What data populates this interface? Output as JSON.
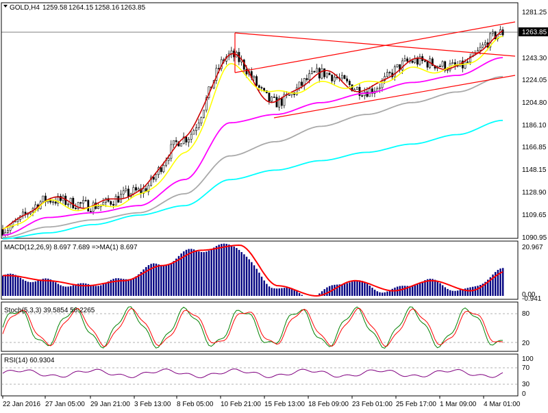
{
  "symbol_header": {
    "symbol": "GOLD,H4",
    "open": "1259.58",
    "high": "1264.15",
    "low": "1258.16",
    "close": "1263.85"
  },
  "price_axis": {
    "ticks": [
      "1281.25",
      "1263.85",
      "1243.30",
      "1224.05",
      "1204.80",
      "1186.10",
      "1166.85",
      "1148.15",
      "1128.90",
      "1109.65",
      "1090.95"
    ],
    "current_price": "1263.85"
  },
  "macd_panel": {
    "label": "MACD(12,26,9) 8.697 7.689  =>MA(1) 8.697",
    "ticks": [
      "20.967",
      "0.00",
      "-0.941"
    ]
  },
  "stoch_panel": {
    "label": "Stoch(5,3,3) 39.5854 56.2265",
    "ticks": [
      "80",
      "20"
    ]
  },
  "rsi_panel": {
    "label": "RSI(14) 60.9304",
    "ticks": [
      "100",
      "70",
      "30",
      "0"
    ]
  },
  "time_axis": {
    "ticks": [
      "22 Jan 2016",
      "27 Jan 05:00",
      "29 Jan 21:00",
      "3 Feb 13:00",
      "8 Feb 05:00",
      "10 Feb 21:00",
      "15 Feb 13:00",
      "18 Feb 09:00",
      "23 Feb 01:00",
      "25 Feb 17:00",
      "1 Mar 09:00",
      "4 Mar 01:00"
    ]
  },
  "colors": {
    "ma_fast": "#ffff00",
    "ma_mid": "#ff00ff",
    "ma_slow": "#a9a9a9",
    "ma_long": "#00ffff",
    "ma_short_red": "#cc0000",
    "trendline": "#ff0000",
    "macd_hist": "#000080",
    "macd_signal": "#ff0000",
    "stoch_main": "#008000",
    "stoch_signal": "#ff0000",
    "rsi_line": "#800080"
  },
  "chart_data": {
    "type": "line",
    "x": [
      "22 Jan 2016",
      "27 Jan 05:00",
      "29 Jan 21:00",
      "3 Feb 13:00",
      "8 Feb 05:00",
      "10 Feb 21:00",
      "15 Feb 13:00",
      "18 Feb 09:00",
      "23 Feb 01:00",
      "25 Feb 17:00",
      "1 Mar 09:00",
      "4 Mar 01:00"
    ],
    "ylim": [
      1090.95,
      1281.25
    ],
    "series": [
      {
        "values": [
          1098,
          1123,
          1118,
          1130,
          1175,
          1245,
          1205,
          1230,
          1215,
          1240,
          1235,
          1264
        ]
      },
      {
        "values": [
          1096,
          1120,
          1115,
          1125,
          1160,
          1235,
          1212,
          1220,
          1220,
          1232,
          1234,
          1258
        ]
      },
      {
        "values": [
          1093,
          1108,
          1112,
          1118,
          1140,
          1188,
          1195,
          1205,
          1213,
          1222,
          1228,
          1243
        ]
      },
      {
        "values": [
          1091,
          1100,
          1106,
          1112,
          1128,
          1160,
          1172,
          1185,
          1195,
          1205,
          1214,
          1227
        ]
      },
      {
        "values": [
          1090,
          1095,
          1102,
          1110,
          1118,
          1140,
          1148,
          1156,
          1163,
          1170,
          1178,
          1190
        ]
      }
    ]
  }
}
